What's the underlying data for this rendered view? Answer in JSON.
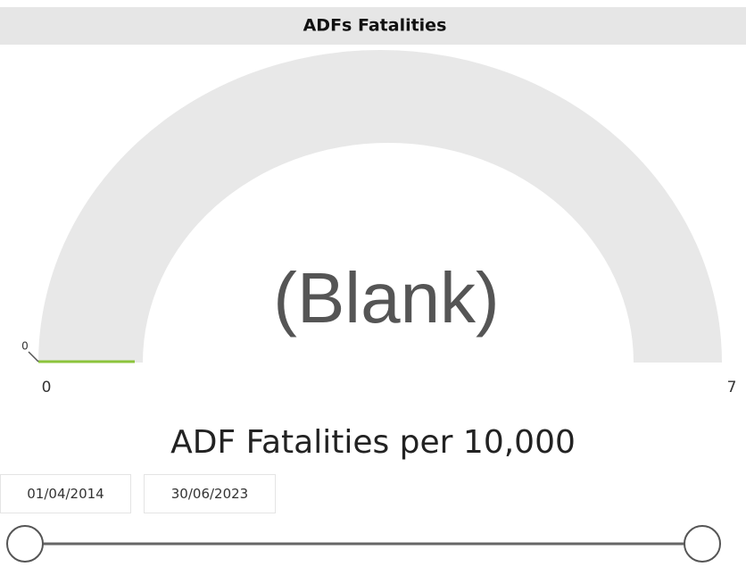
{
  "header": {
    "title": "ADFs Fatalities"
  },
  "gauge": {
    "callout": "(Blank)",
    "min": 0,
    "max": 7,
    "target": 0
  },
  "caption": "ADF Fatalities per 10,000",
  "slicer": {
    "start": "01/04/2014",
    "end": "30/06/2023"
  }
}
